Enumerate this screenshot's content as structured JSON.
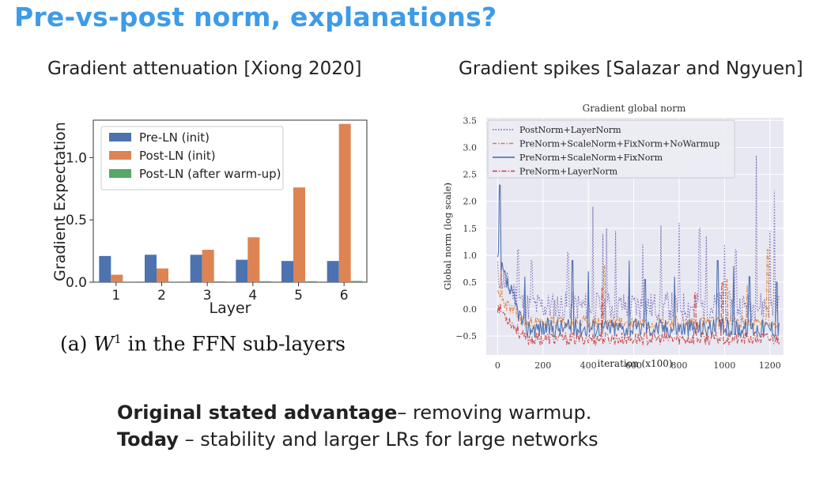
{
  "slide": {
    "title": "Pre-vs-post norm, explanations?",
    "left_heading": "Gradient attenuation [Xiong 2020]",
    "right_heading": "Gradient spikes [Salazar and Ngyuen]",
    "caption_prefix": "(a)",
    "caption_var": "W",
    "caption_sup": "1",
    "caption_rest": "in the FFN sub-layers",
    "line1_bold": "Original stated advantage",
    "line1_rest": "– removing warmup.",
    "line2_bold": "Today",
    "line2_rest": " – stability and larger LRs for large networks"
  },
  "chart_data": [
    {
      "type": "bar",
      "xlabel": "Layer",
      "ylabel": "Gradient Expectation",
      "categories": [
        "1",
        "2",
        "3",
        "4",
        "5",
        "6"
      ],
      "ylim": [
        0,
        1.3
      ],
      "yticks": [
        0.0,
        0.5,
        1.0
      ],
      "ytick_labels": [
        "0.0",
        "0.5",
        "1.0"
      ],
      "legend_position": "top-left",
      "series": [
        {
          "name": "Pre-LN (init)",
          "color": "#4c72b0",
          "values": [
            0.21,
            0.22,
            0.22,
            0.18,
            0.17,
            0.17
          ]
        },
        {
          "name": "Post-LN (init)",
          "color": "#dd8452",
          "values": [
            0.06,
            0.11,
            0.26,
            0.36,
            0.76,
            1.27
          ]
        },
        {
          "name": "Post-LN (after warm-up)",
          "color": "#55a868",
          "values": [
            0.005,
            0.005,
            0.007,
            0.008,
            0.008,
            0.01
          ]
        }
      ]
    },
    {
      "type": "line",
      "title": "Gradient global norm",
      "xlabel": "iteration (x100)",
      "ylabel": "Global norm (log scale)",
      "xlim": [
        -50,
        1260
      ],
      "ylim": [
        -0.85,
        3.55
      ],
      "xticks": [
        0,
        200,
        400,
        600,
        800,
        1000,
        1200
      ],
      "yticks": [
        -0.5,
        0.0,
        0.5,
        1.0,
        1.5,
        2.0,
        2.5,
        3.0,
        3.5
      ],
      "ytick_labels": [
        "−0.5",
        "0.0",
        "0.5",
        "1.0",
        "1.5",
        "2.0",
        "2.5",
        "3.0",
        "3.5"
      ],
      "legend_position": "top",
      "grid": true,
      "series": [
        {
          "name": "PostNorm+LayerNorm",
          "color": "#6f5fb0",
          "dash": "1.5,2",
          "baseline": 0.05,
          "noise": 0.28,
          "spikes": [
            [
              90,
              1.1
            ],
            [
              150,
              0.9
            ],
            [
              310,
              1.05
            ],
            [
              420,
              1.9
            ],
            [
              465,
              1.4
            ],
            [
              480,
              1.5
            ],
            [
              520,
              1.45
            ],
            [
              640,
              1.2
            ],
            [
              720,
              1.55
            ],
            [
              800,
              1.6
            ],
            [
              890,
              1.5
            ],
            [
              920,
              1.35
            ],
            [
              1000,
              1.2
            ],
            [
              1050,
              1.1
            ],
            [
              1140,
              2.85
            ],
            [
              1200,
              1.45
            ],
            [
              1220,
              2.2
            ]
          ],
          "seed": 11
        },
        {
          "name": "PreNorm+ScaleNorm+FixNorm+NoWarmup",
          "color": "#e07a2f",
          "dash": "5,2,1.5,2",
          "baseline": -0.25,
          "noise": 0.12,
          "spikes": [
            [
              15,
              0.9
            ],
            [
              470,
              0.8
            ],
            [
              1010,
              0.55
            ],
            [
              1100,
              0.45
            ],
            [
              1190,
              1.1
            ]
          ],
          "seed": 23
        },
        {
          "name": "PreNorm+ScaleNorm+FixNorm",
          "color": "#4066aa",
          "dash": "",
          "baseline": -0.35,
          "noise": 0.18,
          "spikes": [
            [
              10,
              2.3
            ],
            [
              120,
              0.6
            ],
            [
              330,
              0.9
            ],
            [
              400,
              0.7
            ],
            [
              580,
              0.9
            ],
            [
              650,
              0.55
            ],
            [
              780,
              0.6
            ],
            [
              970,
              0.9
            ],
            [
              1040,
              0.8
            ],
            [
              1110,
              0.6
            ],
            [
              1230,
              0.5
            ]
          ],
          "seed": 37
        },
        {
          "name": "PreNorm+LayerNorm",
          "color": "#c83a3a",
          "dash": "6,2,1.5,2",
          "baseline": -0.55,
          "noise": 0.12,
          "spikes": [
            [
              460,
              0.4
            ],
            [
              870,
              0.3
            ],
            [
              990,
              0.5
            ]
          ],
          "seed": 53
        }
      ]
    }
  ]
}
